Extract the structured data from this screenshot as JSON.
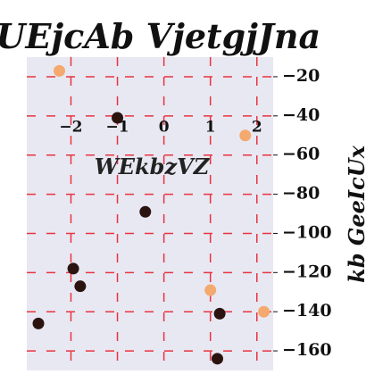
{
  "chart_data": {
    "type": "scatter",
    "title": "lUEjcAb VjetgjJna",
    "xlabel": "WEkbzVZ",
    "ylabel": "kb GeeIcUx",
    "xlim": [
      -2.95,
      2.35
    ],
    "ylim": [
      -170,
      -10
    ],
    "x_ticks": [
      -2,
      -1,
      0,
      1,
      2
    ],
    "x_tick_labels": [
      "−2",
      "−1",
      "0",
      "1",
      "2"
    ],
    "y_ticks": [
      -20,
      -40,
      -60,
      -80,
      -100,
      -120,
      -140,
      -160
    ],
    "y_tick_labels": [
      "−20",
      "−40",
      "−60",
      "−80",
      "−100",
      "−120",
      "−140",
      "−160"
    ],
    "grid": true,
    "series": [
      {
        "color": "#f4a96e",
        "points": [
          {
            "x": -2.25,
            "y": -17
          },
          {
            "x": 1.75,
            "y": -50
          },
          {
            "x": 1.0,
            "y": -129
          },
          {
            "x": 2.15,
            "y": -140
          }
        ]
      },
      {
        "color": "#2b1410",
        "points": [
          {
            "x": -1.0,
            "y": -41
          },
          {
            "x": -0.4,
            "y": -89
          },
          {
            "x": -1.95,
            "y": -118
          },
          {
            "x": -1.8,
            "y": -127
          },
          {
            "x": -2.7,
            "y": -146
          },
          {
            "x": 1.2,
            "y": -141
          },
          {
            "x": 1.15,
            "y": -164
          }
        ]
      }
    ],
    "colors": {
      "plot_background": "#e8e8f3",
      "grid": "#e8343f"
    }
  }
}
